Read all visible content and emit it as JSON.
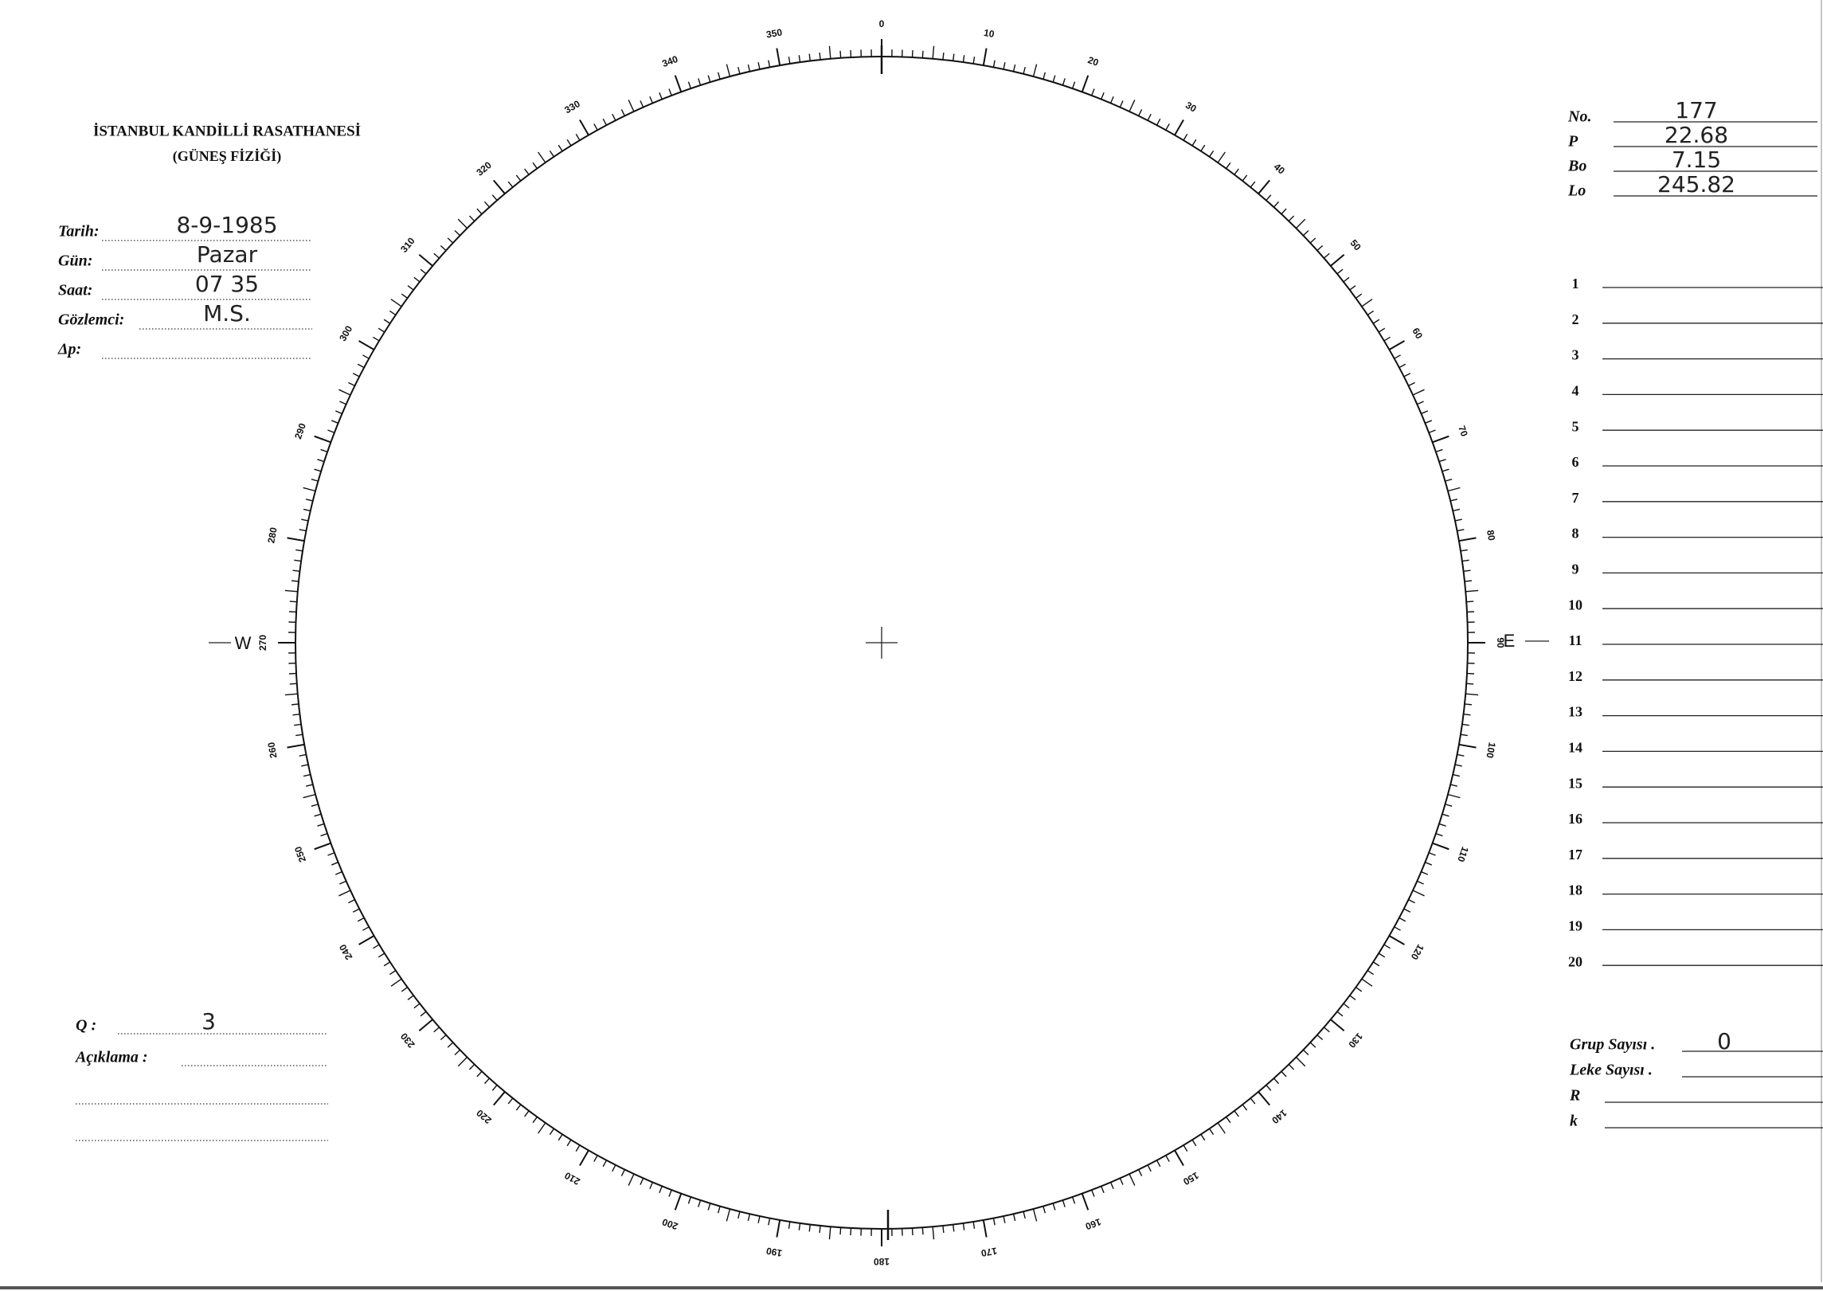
{
  "header": {
    "title": "İSTANBUL KANDİLLİ RASATHANESİ",
    "subtitle": "(GÜNEŞ FİZİĞİ)"
  },
  "observation": [
    {
      "label": "Tarih:",
      "value": "8-9-1985"
    },
    {
      "label": "Gün:",
      "value": "Pazar"
    },
    {
      "label": "Saat:",
      "value": "07 35"
    },
    {
      "label": "Gözlemci:",
      "value": "M.S."
    },
    {
      "label": "Δp:"
    }
  ],
  "parameters": [
    {
      "label": "No.",
      "value": "177"
    },
    {
      "label": "P",
      "value": "22.68"
    },
    {
      "label": "Bo",
      "value": "7.15"
    },
    {
      "label": "Lo",
      "value": "245.82"
    }
  ],
  "lines": [
    "1",
    "2",
    "3",
    "4",
    "5",
    "6",
    "7",
    "8",
    "9",
    "10",
    "11",
    "12",
    "13",
    "14",
    "15",
    "16",
    "17",
    "18",
    "19",
    "20"
  ],
  "dial": {
    "degrees": [
      "0",
      "10",
      "20",
      "30",
      "40",
      "50",
      "60",
      "70",
      "80",
      "90",
      "100",
      "110",
      "120",
      "130",
      "140",
      "150",
      "160",
      "170",
      "180",
      "190",
      "200",
      "210",
      "220",
      "230",
      "240",
      "250",
      "260",
      "270",
      "280",
      "290",
      "300",
      "310",
      "320",
      "330",
      "340",
      "350"
    ],
    "west": "W",
    "east": "E"
  },
  "notes": {
    "q_label": "Q :",
    "q_value": "3",
    "remark_label": "Açıklama :"
  },
  "counts": [
    {
      "label": "Grup Sayısı .",
      "value": "0"
    },
    {
      "label": "Leke Sayısı ."
    },
    {
      "label": "R"
    },
    {
      "label": "k"
    }
  ]
}
